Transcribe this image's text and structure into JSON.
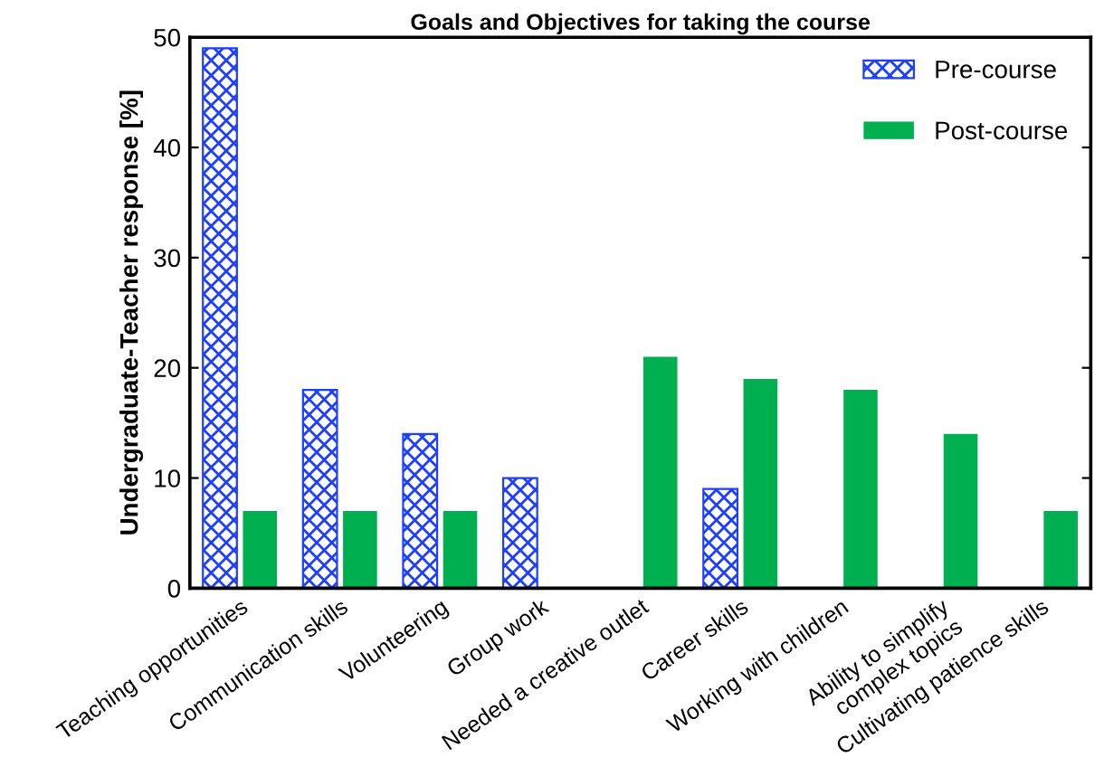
{
  "chart_data": {
    "type": "bar",
    "title": "Goals and Objectives for taking the course",
    "ylabel": "Undergraduate-Teacher response [%]",
    "categories": [
      "Teaching opportunities",
      "Communication skills",
      "Volunteering",
      "Group work",
      "Needed a creative outlet",
      "Career skills",
      "Working with children",
      "Ability to simplify\ncomplex topics",
      "Cultivating patience skills"
    ],
    "series": [
      {
        "name": "Pre-course",
        "color": "#1f3fff",
        "values": [
          49,
          18,
          14,
          10,
          null,
          9,
          null,
          null,
          null
        ]
      },
      {
        "name": "Post-course",
        "color": "#00b050",
        "values": [
          7,
          7,
          7,
          null,
          21,
          19,
          18,
          14,
          7
        ]
      }
    ],
    "ylim": [
      0,
      50
    ],
    "yticks": [
      0,
      10,
      20,
      30,
      40,
      50
    ],
    "legend": "top right",
    "grid": false
  }
}
